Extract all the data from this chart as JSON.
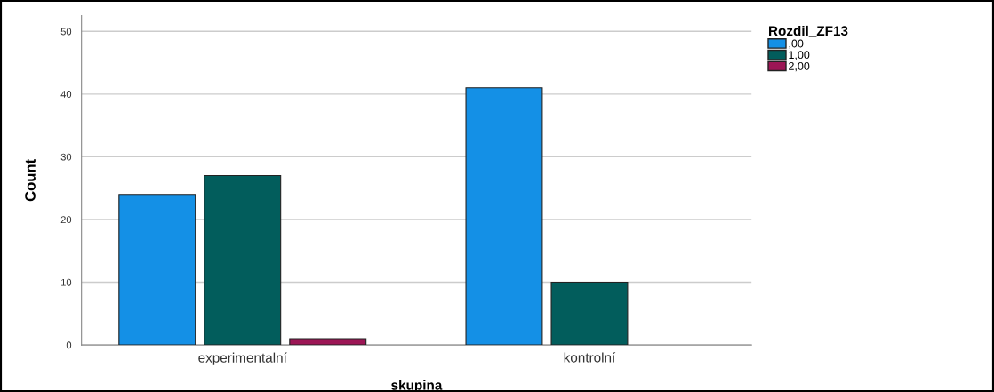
{
  "chart_data": {
    "type": "bar",
    "xlabel": "skupina",
    "ylabel": "Count",
    "legend_title": "Rozdil_ZF13",
    "categories": [
      "experimentalní",
      "kontrolní"
    ],
    "series": [
      {
        "name": ",00",
        "color": "#1490e6",
        "values": [
          24,
          41
        ]
      },
      {
        "name": "1,00",
        "color": "#025d5c",
        "values": [
          27,
          10
        ]
      },
      {
        "name": "2,00",
        "color": "#9c1655",
        "values": [
          1,
          null
        ]
      }
    ],
    "ylim": [
      0,
      52.5
    ],
    "yticks": [
      0,
      10,
      20,
      30,
      40,
      50
    ],
    "grid": "y",
    "legend": "top right"
  }
}
